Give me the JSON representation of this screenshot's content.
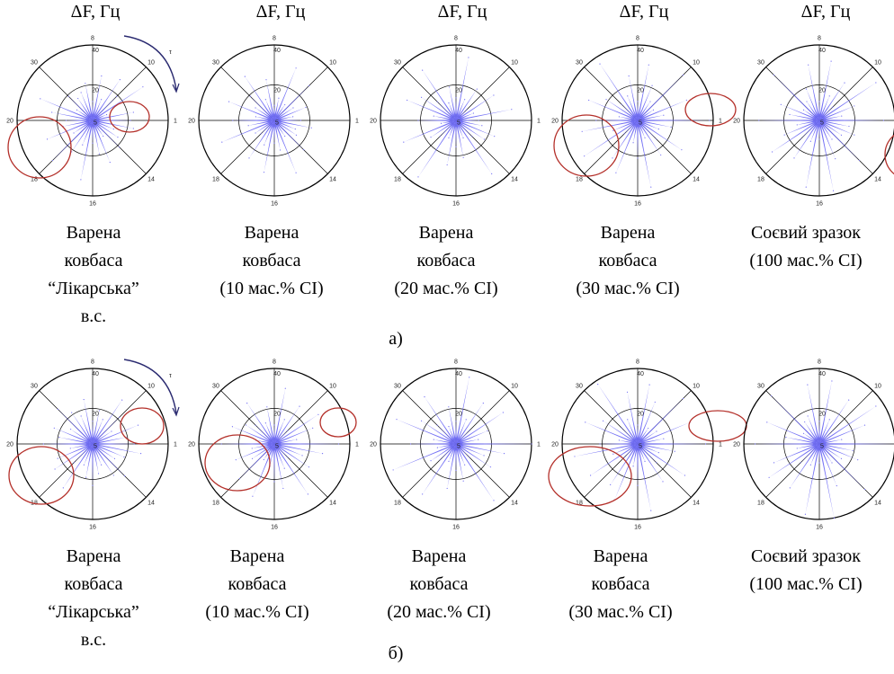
{
  "axis_header": "ΔF, Гц",
  "tau_label": "τ",
  "colors": {
    "fill": "#6f6cf4",
    "grid": "#000000",
    "highlight": "#b4302a",
    "arrow": "#2a2a70"
  },
  "chart_data": [
    {
      "panel": "a)",
      "type": "radar",
      "angular_ticks": [
        "1",
        "10",
        "8",
        "30",
        "20",
        "18",
        "16",
        "14"
      ],
      "radial_ticks": [
        "5",
        "20",
        "40"
      ],
      "rlim": [
        0,
        40
      ],
      "charts": [
        {
          "caption": [
            "Варена",
            "ковбаса",
            "“Лікарська”",
            "в.с."
          ],
          "values": [
            20,
            22,
            8,
            32,
            18,
            26,
            12,
            24,
            10,
            20,
            16,
            14,
            18,
            10,
            30,
            22,
            14,
            16,
            26,
            12,
            30,
            20,
            14,
            32,
            12,
            18,
            24,
            10,
            20,
            16,
            12,
            22
          ]
        },
        {
          "caption": [
            "Варена",
            "ковбаса",
            "(10 мас.% СІ)"
          ],
          "values": [
            14,
            10,
            18,
            12,
            26,
            10,
            30,
            12,
            8,
            22,
            12,
            28,
            18,
            12,
            26,
            10,
            22,
            14,
            30,
            12,
            10,
            24,
            14,
            28,
            12,
            16,
            30,
            10,
            22,
            14,
            12,
            20
          ]
        },
        {
          "caption": [
            "Варена",
            "ковбаса",
            "(20 мас.% СІ)"
          ],
          "values": [
            12,
            30,
            10,
            24,
            8,
            20,
            12,
            34,
            12,
            18,
            10,
            32,
            14,
            22,
            28,
            12,
            20,
            8,
            30,
            16,
            12,
            36,
            10,
            24,
            14,
            20,
            10,
            34,
            12,
            18,
            22,
            14
          ]
        },
        {
          "caption": [
            "Варена",
            "ковбаса",
            "(30 мас.% СІ)"
          ],
          "values": [
            38,
            14,
            28,
            10,
            34,
            12,
            20,
            30,
            10,
            24,
            14,
            36,
            12,
            20,
            28,
            10,
            22,
            30,
            14,
            34,
            10,
            24,
            30,
            12,
            20,
            36,
            10,
            22,
            14,
            28,
            12,
            18
          ]
        },
        {
          "caption": [
            "Соєвий зразок",
            "(100 мас.% СІ)"
          ],
          "values": [
            34,
            12,
            20,
            36,
            10,
            24,
            14,
            32,
            10,
            30,
            18,
            12,
            34,
            10,
            22,
            16,
            32,
            12,
            20,
            30,
            14,
            24,
            12,
            36,
            10,
            38,
            22,
            12,
            30,
            14,
            20,
            16
          ]
        }
      ]
    },
    {
      "panel": "б)",
      "type": "radar",
      "angular_ticks": [
        "1",
        "10",
        "8",
        "30",
        "20",
        "18",
        "16",
        "14"
      ],
      "radial_ticks": [
        "5",
        "20",
        "40"
      ],
      "rlim": [
        0,
        40
      ],
      "charts": [
        {
          "caption": [
            "Варена",
            "ковбаса",
            "“Лікарська”",
            "в.с."
          ],
          "values": [
            22,
            18,
            26,
            12,
            20,
            28,
            14,
            18,
            12,
            24,
            16,
            20,
            26,
            14,
            22,
            18,
            26,
            12,
            20,
            24,
            14,
            28,
            12,
            18,
            22,
            16,
            12,
            20,
            24,
            14,
            18,
            26
          ]
        },
        {
          "caption": [
            "Варена",
            "ковбаса",
            "(10 мас.% СІ)"
          ],
          "values": [
            34,
            12,
            22,
            28,
            10,
            24,
            14,
            30,
            10,
            20,
            12,
            26,
            14,
            18,
            24,
            10,
            28,
            12,
            22,
            14,
            26,
            10,
            30,
            12,
            20,
            24,
            14,
            32,
            10,
            22,
            16,
            26
          ]
        },
        {
          "caption": [
            "Варена",
            "ковбаса",
            "(20 мас.% СІ)"
          ],
          "values": [
            40,
            12,
            18,
            30,
            10,
            26,
            14,
            36,
            12,
            20,
            10,
            30,
            14,
            22,
            34,
            12,
            24,
            10,
            36,
            16,
            12,
            32,
            10,
            24,
            14,
            20,
            12,
            36,
            10,
            22,
            16,
            26
          ]
        },
        {
          "caption": [
            "Варена",
            "ковбаса",
            "(30 мас.% СІ)"
          ],
          "values": [
            36,
            14,
            30,
            12,
            34,
            10,
            24,
            32,
            10,
            28,
            14,
            38,
            12,
            22,
            30,
            10,
            20,
            34,
            14,
            30,
            10,
            26,
            32,
            12,
            22,
            36,
            10,
            24,
            14,
            30,
            12,
            20
          ]
        },
        {
          "caption": [
            "Соєвий зразок",
            "(100 мас.% СІ)"
          ],
          "values": [
            40,
            12,
            26,
            36,
            10,
            28,
            14,
            34,
            12,
            32,
            16,
            14,
            36,
            10,
            30,
            18,
            34,
            12,
            26,
            32,
            14,
            28,
            12,
            38,
            10,
            40,
            24,
            12,
            34,
            14,
            22,
            18
          ]
        }
      ]
    }
  ]
}
